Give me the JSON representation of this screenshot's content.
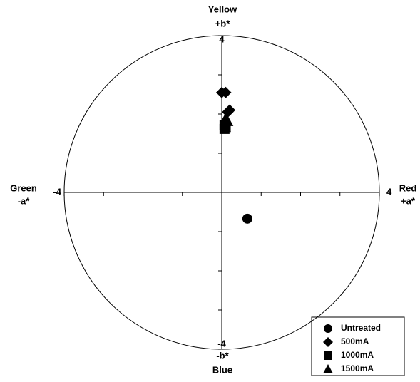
{
  "chart_data": {
    "type": "scatter",
    "axis_labels": {
      "top": [
        "Yellow",
        "+b*"
      ],
      "bottom": [
        "-b*",
        "Blue"
      ],
      "left": [
        "Green",
        "-a*"
      ],
      "right": [
        "Red",
        "+a*"
      ]
    },
    "xlim": [
      -4,
      4
    ],
    "ylim": [
      -4,
      4
    ],
    "xticks": [
      -4,
      4
    ],
    "yticks": [
      -4,
      4
    ],
    "minor_ticks": [
      -3,
      -2,
      -1,
      1,
      2,
      3
    ],
    "legend": "lower right",
    "series": [
      {
        "name": "Untreated",
        "color": "#000000",
        "marker": "circle",
        "x": [
          0.65
        ],
        "y": [
          -0.67
        ]
      },
      {
        "name": "500mA",
        "color": "#000000",
        "marker": "diamond",
        "x": [
          0.0,
          0.1,
          0.15,
          0.2
        ],
        "y": [
          2.55,
          2.55,
          2.05,
          2.1
        ]
      },
      {
        "name": "1000mA",
        "color": "#000000",
        "marker": "square",
        "x": [
          0.07,
          0.1,
          0.07
        ],
        "y": [
          1.71,
          1.67,
          1.62
        ]
      },
      {
        "name": "1500mA",
        "color": "#000000",
        "marker": "triangle",
        "x": [
          0.1,
          0.15,
          0.09
        ],
        "y": [
          1.89,
          1.82,
          1.67
        ]
      }
    ]
  }
}
